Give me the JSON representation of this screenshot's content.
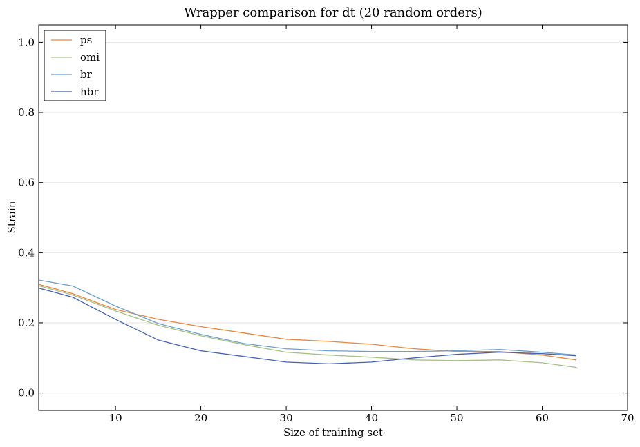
{
  "chart_data": {
    "type": "line",
    "title": "Wrapper comparison for dt (20 random orders)",
    "xlabel": "Size of training set",
    "ylabel": "Strain",
    "x": [
      1,
      5,
      10,
      15,
      20,
      25,
      30,
      35,
      40,
      45,
      50,
      55,
      60,
      64
    ],
    "series": [
      {
        "name": "ps",
        "color": "#e8863c",
        "values": [
          0.31,
          0.283,
          0.238,
          0.21,
          0.189,
          0.171,
          0.153,
          0.147,
          0.139,
          0.126,
          0.118,
          0.118,
          0.108,
          0.094
        ]
      },
      {
        "name": "omi",
        "color": "#a8bf82",
        "values": [
          0.306,
          0.279,
          0.234,
          0.193,
          0.163,
          0.138,
          0.116,
          0.108,
          0.102,
          0.094,
          0.092,
          0.094,
          0.086,
          0.073
        ]
      },
      {
        "name": "br",
        "color": "#6b9fcb",
        "values": [
          0.322,
          0.305,
          0.248,
          0.198,
          0.167,
          0.141,
          0.126,
          0.12,
          0.118,
          0.118,
          0.12,
          0.124,
          0.116,
          0.108
        ]
      },
      {
        "name": "hbr",
        "color": "#4462b2",
        "values": [
          0.299,
          0.273,
          0.21,
          0.151,
          0.12,
          0.104,
          0.088,
          0.083,
          0.088,
          0.1,
          0.11,
          0.116,
          0.112,
          0.106
        ]
      }
    ],
    "xlim": [
      1,
      70
    ],
    "xticks": [
      10,
      20,
      30,
      40,
      50,
      60,
      70
    ],
    "ylim": [
      -0.05,
      1.05
    ],
    "yticks": [
      {
        "value": 0,
        "label": "0.0"
      },
      {
        "value": 0.2,
        "label": "0.2"
      },
      {
        "value": 0.4,
        "label": "0.4"
      },
      {
        "value": 0.6,
        "label": "0.6"
      },
      {
        "value": 0.8,
        "label": "0.8"
      },
      {
        "value": 1,
        "label": "1.0"
      }
    ],
    "grid": true,
    "legend": "upper left"
  }
}
